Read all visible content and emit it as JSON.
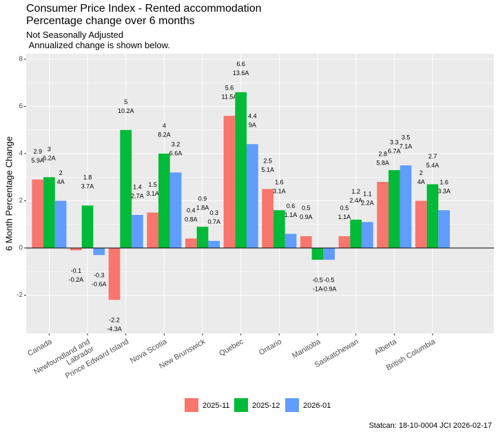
{
  "chart_data": {
    "type": "bar",
    "title": "Consumer Price Index - Rented accommodation\nPercentage change over 6 months",
    "subtitle": "Not Seasonally Adjusted\n Annualized change is shown below.",
    "y_label": "6 Month Percentage Change",
    "caption": "Statcan: 18-10-0004 JCI 2026-02-17",
    "categories": [
      "Canada",
      "Newfoundland and\nLabrador",
      "Prince Edward Island",
      "Nova Scotia",
      "New Brunswick",
      "Quebec",
      "Ontario",
      "Manitoba",
      "Saskatchewan",
      "Alberta",
      "British Columbia"
    ],
    "series": [
      {
        "name": "2025-11",
        "color": "#F8766D",
        "values": [
          2.9,
          -0.1,
          -2.2,
          1.5,
          0.4,
          5.6,
          2.5,
          0.5,
          0.5,
          2.8,
          2
        ],
        "annualized_labels": [
          "5.9A",
          "-0.2A",
          "-4.3A",
          "3.1A",
          "0.8A",
          "11.5A",
          "5.1A",
          "0.9A",
          "1.1A",
          "5.8A",
          "4A"
        ]
      },
      {
        "name": "2025-12",
        "color": "#00BA38",
        "values": [
          3,
          1.8,
          5,
          4,
          0.9,
          6.6,
          1.6,
          -0.5,
          1.2,
          3.3,
          2.7
        ],
        "annualized_labels": [
          "6.2A",
          "3.7A",
          "10.2A",
          "8.2A",
          "1.8A",
          "13.6A",
          "3.1A",
          "-1A",
          "2.4A",
          "6.7A",
          "5.4A"
        ]
      },
      {
        "name": "2026-01",
        "color": "#619CFF",
        "values": [
          2,
          -0.3,
          1.4,
          3.2,
          0.3,
          4.4,
          0.6,
          -0.5,
          1.1,
          3.5,
          1.6
        ],
        "annualized_labels": [
          "4A",
          "-0.6A",
          "2.7A",
          "6.6A",
          "0.7A",
          "9A",
          "1.1A",
          "-0.9A",
          "2.2A",
          "7.1A",
          "3.3A"
        ]
      }
    ],
    "ylim": [
      -3.62,
      8.23
    ],
    "yticks": [
      -2,
      0,
      2,
      4,
      6,
      8
    ],
    "grid": true,
    "legend": "bottom"
  }
}
